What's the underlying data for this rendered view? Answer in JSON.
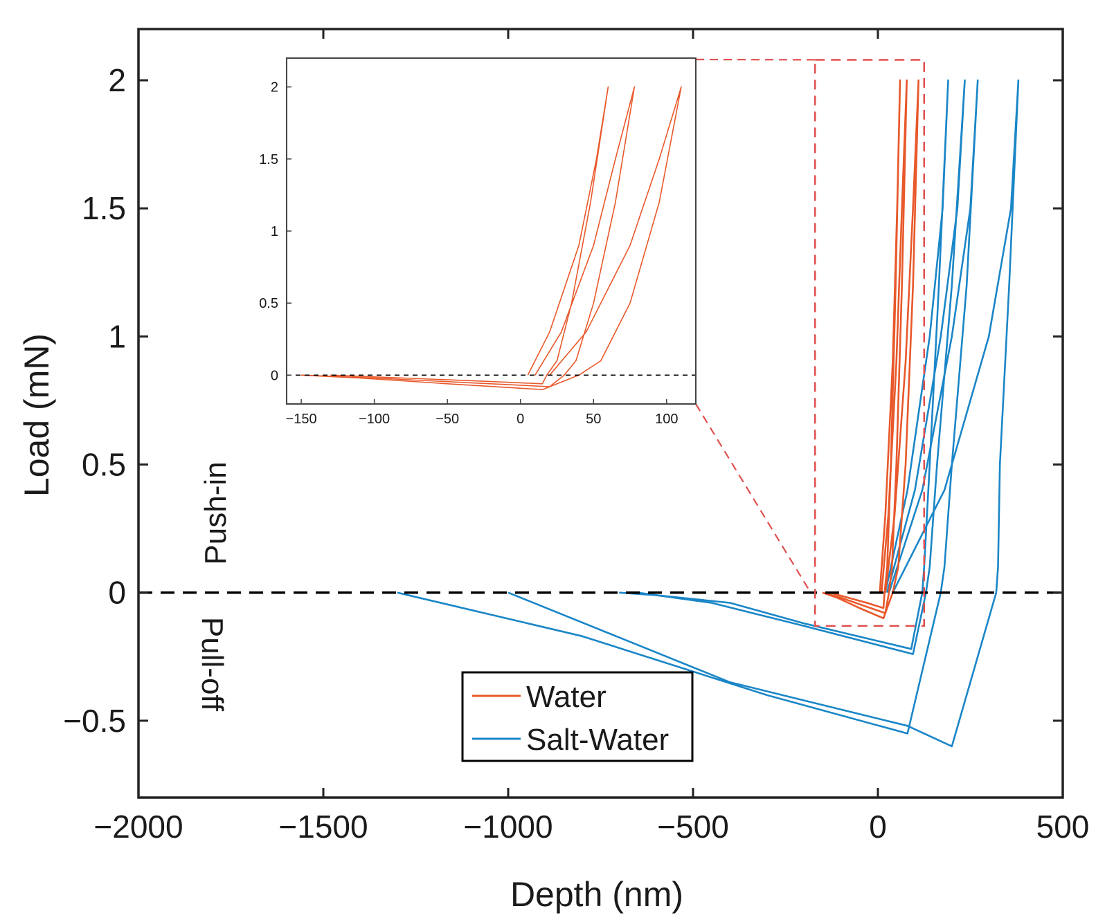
{
  "chart_data": {
    "type": "line",
    "xlabel": "Depth (nm)",
    "ylabel": "Load (mN)",
    "xlim": [
      -2000,
      500
    ],
    "ylim": [
      -0.8,
      2.2
    ],
    "xticks": [
      -2000,
      -1500,
      -1000,
      -500,
      0,
      500
    ],
    "yticks": [
      -0.5,
      0,
      0.5,
      1,
      1.5,
      2
    ],
    "xtick_labels": [
      "−2000",
      "−1500",
      "−1000",
      "−500",
      "0",
      "500"
    ],
    "ytick_labels": [
      "−0.5",
      "0",
      "0.5",
      "1",
      "1.5",
      "2"
    ],
    "grid": false,
    "legend": {
      "placement": "bottom-center",
      "entries": [
        "Water",
        "Salt-Water"
      ]
    },
    "annotations": {
      "push_in": "Push-in",
      "pull_off": "Pull-off"
    },
    "zero_line": {
      "y": 0,
      "style": "dashed",
      "color": "#000000"
    },
    "zoom_box": {
      "x": [
        -170,
        125
      ],
      "y": [
        -0.13,
        2.08
      ],
      "color": "#e05050"
    },
    "series": [
      {
        "name": "Water",
        "color": "#e8582a",
        "curves": [
          {
            "load_x": [
              [
                5,
                0
              ],
              [
                20,
                0.3
              ],
              [
                40,
                0.9
              ],
              [
                52,
                1.5
              ],
              [
                60,
                2.0
              ]
            ],
            "unload_x": [
              [
                60,
                2.0
              ],
              [
                48,
                1.2
              ],
              [
                35,
                0.5
              ],
              [
                25,
                0.1
              ],
              [
                18,
                0
              ],
              [
                15,
                -0.06
              ],
              [
                -30,
                -0.04
              ],
              [
                -80,
                -0.02
              ],
              [
                -130,
                0
              ]
            ]
          },
          {
            "load_x": [
              [
                10,
                0
              ],
              [
                28,
                0.3
              ],
              [
                50,
                0.9
              ],
              [
                65,
                1.5
              ],
              [
                78,
                2.0
              ]
            ],
            "unload_x": [
              [
                78,
                2.0
              ],
              [
                65,
                1.2
              ],
              [
                50,
                0.5
              ],
              [
                38,
                0.1
              ],
              [
                30,
                0
              ],
              [
                20,
                -0.08
              ],
              [
                -40,
                -0.05
              ],
              [
                -100,
                -0.02
              ],
              [
                -150,
                0
              ]
            ]
          },
          {
            "load_x": [
              [
                20,
                0
              ],
              [
                45,
                0.3
              ],
              [
                75,
                0.9
              ],
              [
                95,
                1.5
              ],
              [
                110,
                2.0
              ]
            ],
            "unload_x": [
              [
                110,
                2.0
              ],
              [
                95,
                1.2
              ],
              [
                75,
                0.5
              ],
              [
                55,
                0.1
              ],
              [
                40,
                0
              ],
              [
                15,
                -0.1
              ],
              [
                -50,
                -0.06
              ],
              [
                -110,
                -0.02
              ],
              [
                -150,
                0
              ]
            ]
          }
        ]
      },
      {
        "name": "Salt-Water",
        "color": "#1a86c7",
        "curves": [
          {
            "load_x": [
              [
                20,
                0
              ],
              [
                80,
                0.4
              ],
              [
                140,
                1.0
              ],
              [
                175,
                1.5
              ],
              [
                190,
                2.0
              ]
            ],
            "unload_x": [
              [
                190,
                2.0
              ],
              [
                165,
                1.2
              ],
              [
                140,
                0.5
              ],
              [
                125,
                0.1
              ],
              [
                120,
                0
              ],
              [
                90,
                -0.22
              ],
              [
                -200,
                -0.12
              ],
              [
                -400,
                -0.04
              ],
              [
                -600,
                -0.01
              ],
              [
                -700,
                0
              ]
            ]
          },
          {
            "load_x": [
              [
                25,
                0
              ],
              [
                100,
                0.4
              ],
              [
                170,
                1.0
              ],
              [
                215,
                1.5
              ],
              [
                235,
                2.0
              ]
            ],
            "unload_x": [
              [
                235,
                2.0
              ],
              [
                200,
                1.2
              ],
              [
                160,
                0.5
              ],
              [
                140,
                0.1
              ],
              [
                130,
                0
              ],
              [
                95,
                -0.24
              ],
              [
                -200,
                -0.13
              ],
              [
                -450,
                -0.04
              ],
              [
                -650,
                0
              ]
            ]
          },
          {
            "load_x": [
              [
                30,
                0
              ],
              [
                120,
                0.4
              ],
              [
                200,
                1.0
              ],
              [
                250,
                1.5
              ],
              [
                270,
                2.0
              ]
            ],
            "unload_x": [
              [
                270,
                2.0
              ],
              [
                240,
                1.2
              ],
              [
                200,
                0.5
              ],
              [
                180,
                0.1
              ],
              [
                170,
                0
              ],
              [
                80,
                -0.55
              ],
              [
                -300,
                -0.4
              ],
              [
                -800,
                -0.17
              ],
              [
                -1300,
                0
              ]
            ]
          },
          {
            "load_x": [
              [
                40,
                0
              ],
              [
                180,
                0.4
              ],
              [
                300,
                1.0
              ],
              [
                360,
                1.5
              ],
              [
                380,
                2.0
              ]
            ],
            "unload_x": [
              [
                380,
                2.0
              ],
              [
                355,
                1.2
              ],
              [
                330,
                0.5
              ],
              [
                325,
                0.1
              ],
              [
                320,
                0
              ],
              [
                200,
                -0.6
              ],
              [
                80,
                -0.52
              ],
              [
                -400,
                -0.35
              ],
              [
                -1000,
                0
              ]
            ]
          }
        ]
      }
    ],
    "inset": {
      "xlim": [
        -160,
        120
      ],
      "ylim": [
        -0.2,
        2.2
      ],
      "xticks": [
        -150,
        -100,
        -50,
        0,
        50,
        100
      ],
      "yticks": [
        0,
        0.5,
        1,
        1.5,
        2
      ],
      "xtick_labels": [
        "−150",
        "−100",
        "−50",
        "0",
        "50",
        "100"
      ],
      "ytick_labels": [
        "0",
        "0.5",
        "1",
        "1.5",
        "2"
      ],
      "series_ref": "Water"
    }
  }
}
